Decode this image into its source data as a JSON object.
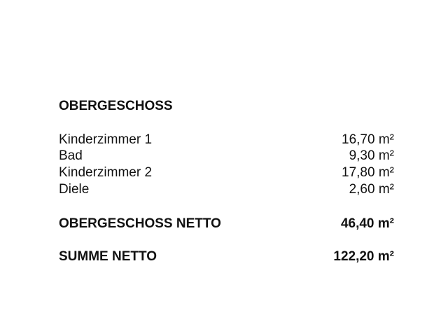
{
  "section_title": "OBERGESCHOSS",
  "rooms": [
    {
      "name": "Kinderzimmer 1",
      "area": "16,70 m²"
    },
    {
      "name": "Bad",
      "area": "9,30 m²"
    },
    {
      "name": "Kinderzimmer 2",
      "area": "17,80 m²"
    },
    {
      "name": "Diele",
      "area": "2,60 m²"
    }
  ],
  "subtotal": {
    "label": "OBERGESCHOSS NETTO",
    "area": "46,40 m²"
  },
  "total": {
    "label": "SUMME NETTO",
    "area": "122,20 m²"
  }
}
